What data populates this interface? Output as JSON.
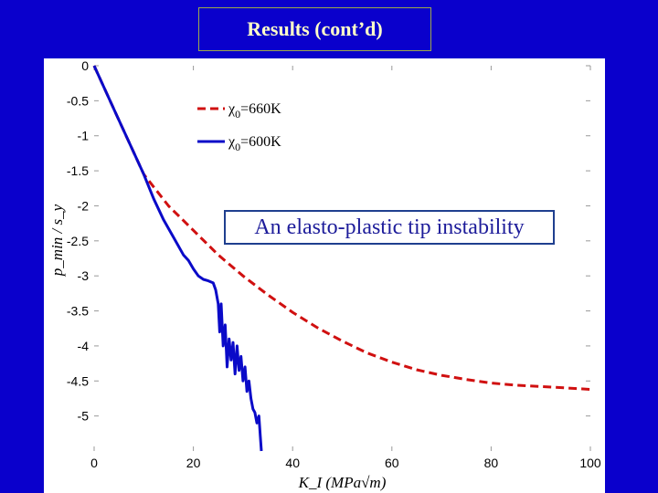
{
  "slide": {
    "title": "Results (cont’d)",
    "colors": {
      "background": "#0a00cc",
      "title_text": "#ffffc8"
    }
  },
  "annotation": {
    "text": "An elasto-plastic tip instability"
  },
  "chart_data": {
    "type": "line",
    "title": "",
    "xlabel": "K_I (MPa√m)",
    "ylabel": "p_min / s_y",
    "xlim": [
      0,
      100
    ],
    "ylim": [
      -5.5,
      0
    ],
    "xticks": [
      0,
      20,
      40,
      60,
      80,
      100
    ],
    "xtick_labels": [
      "0",
      "20",
      "40",
      "60",
      "80",
      "100"
    ],
    "yticks": [
      0,
      -0.5,
      -1,
      -1.5,
      -2,
      -2.5,
      -3,
      -3.5,
      -4,
      -4.5,
      -5
    ],
    "ytick_labels": [
      "0",
      "-0.5",
      "-1",
      "-1.5",
      "-2",
      "-2.5",
      "-3",
      "-3.5",
      "-4",
      "-4.5",
      "-5"
    ],
    "grid": false,
    "legend_position": "top-left",
    "series": [
      {
        "name": "χ₀=660K",
        "legend_symbol": "χ",
        "legend_subscript": "0",
        "legend_value": "=660K",
        "color": "#d01010",
        "style": "dashed",
        "x": [
          0,
          5,
          10,
          15,
          20,
          25,
          30,
          35,
          40,
          45,
          50,
          55,
          60,
          65,
          70,
          75,
          80,
          85,
          90,
          95,
          100
        ],
        "y": [
          0,
          -0.78,
          -1.55,
          -2.0,
          -2.35,
          -2.7,
          -3.0,
          -3.27,
          -3.52,
          -3.74,
          -3.93,
          -4.1,
          -4.23,
          -4.34,
          -4.42,
          -4.48,
          -4.53,
          -4.56,
          -4.58,
          -4.6,
          -4.62
        ]
      },
      {
        "name": "χ₀=600K",
        "legend_symbol": "χ",
        "legend_subscript": "0",
        "legend_value": "=600K",
        "color": "#0a0ac8",
        "style": "solid",
        "x": [
          0,
          5,
          10,
          12,
          14,
          16,
          18,
          19,
          20,
          21,
          22,
          23,
          24,
          24.5,
          25,
          25.3,
          25.6,
          26,
          26.4,
          26.8,
          27.2,
          27.6,
          28,
          28.4,
          28.8,
          29.2,
          29.6,
          30,
          30.4,
          30.8,
          31.2,
          31.6,
          32,
          32.4,
          32.8,
          33.2,
          33.5,
          33.7
        ],
        "y": [
          0,
          -0.78,
          -1.55,
          -1.9,
          -2.2,
          -2.45,
          -2.7,
          -2.78,
          -2.9,
          -3.0,
          -3.05,
          -3.07,
          -3.1,
          -3.2,
          -3.4,
          -3.8,
          -3.4,
          -4.0,
          -3.7,
          -4.3,
          -3.9,
          -4.2,
          -3.95,
          -4.4,
          -4.0,
          -4.35,
          -4.15,
          -4.5,
          -4.3,
          -4.65,
          -4.5,
          -4.75,
          -4.9,
          -4.95,
          -5.1,
          -5.0,
          -5.3,
          -5.5
        ]
      }
    ]
  }
}
